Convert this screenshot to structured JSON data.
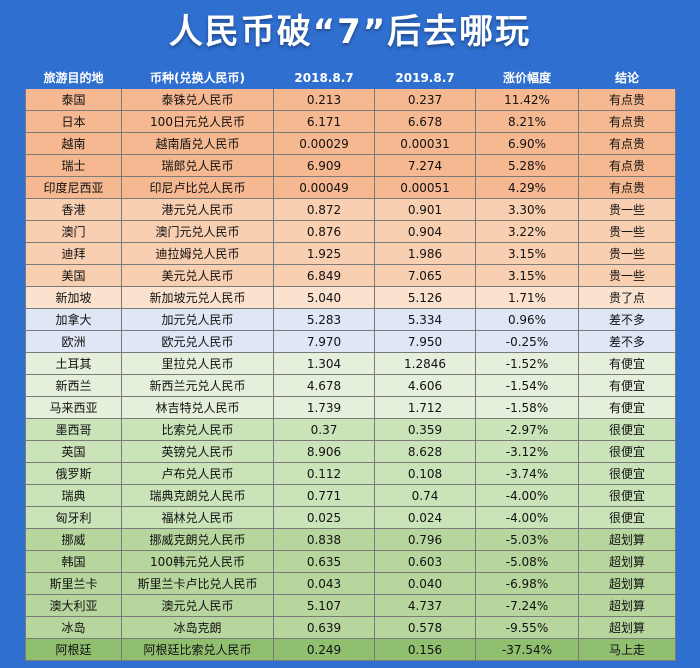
{
  "title": "人民币破“7”后去哪玩",
  "headers": [
    "旅游目的地",
    "币种(兑换人民币)",
    "2018.8.7",
    "2019.8.7",
    "涨价幅度",
    "结论"
  ],
  "rows": [
    {
      "dest": "泰国",
      "currency": "泰铢兑人民币",
      "v2018": "0.213",
      "v2019": "0.237",
      "change": "11.42%",
      "verdict": "有点贵",
      "group": "g-expensive"
    },
    {
      "dest": "日本",
      "currency": "100日元兑人民币",
      "v2018": "6.171",
      "v2019": "6.678",
      "change": "8.21%",
      "verdict": "有点贵",
      "group": "g-expensive"
    },
    {
      "dest": "越南",
      "currency": "越南盾兑人民币",
      "v2018": "0.00029",
      "v2019": "0.00031",
      "change": "6.90%",
      "verdict": "有点贵",
      "group": "g-expensive"
    },
    {
      "dest": "瑞士",
      "currency": "瑞郎兑人民币",
      "v2018": "6.909",
      "v2019": "7.274",
      "change": "5.28%",
      "verdict": "有点贵",
      "group": "g-expensive"
    },
    {
      "dest": "印度尼西亚",
      "currency": "印尼卢比兑人民币",
      "v2018": "0.00049",
      "v2019": "0.00051",
      "change": "4.29%",
      "verdict": "有点贵",
      "group": "g-expensive"
    },
    {
      "dest": "香港",
      "currency": "港元兑人民币",
      "v2018": "0.872",
      "v2019": "0.901",
      "change": "3.30%",
      "verdict": "贵一些",
      "group": "g-some"
    },
    {
      "dest": "澳门",
      "currency": "澳门元兑人民币",
      "v2018": "0.876",
      "v2019": "0.904",
      "change": "3.22%",
      "verdict": "贵一些",
      "group": "g-some"
    },
    {
      "dest": "迪拜",
      "currency": "迪拉姆兑人民币",
      "v2018": "1.925",
      "v2019": "1.986",
      "change": "3.15%",
      "verdict": "贵一些",
      "group": "g-some"
    },
    {
      "dest": "美国",
      "currency": "美元兑人民币",
      "v2018": "6.849",
      "v2019": "7.065",
      "change": "3.15%",
      "verdict": "贵一些",
      "group": "g-some"
    },
    {
      "dest": "新加坡",
      "currency": "新加坡元兑人民币",
      "v2018": "5.040",
      "v2019": "5.126",
      "change": "1.71%",
      "verdict": "贵了点",
      "group": "g-bit"
    },
    {
      "dest": "加拿大",
      "currency": "加元兑人民币",
      "v2018": "5.283",
      "v2019": "5.334",
      "change": "0.96%",
      "verdict": "差不多",
      "group": "g-same"
    },
    {
      "dest": "欧洲",
      "currency": "欧元兑人民币",
      "v2018": "7.970",
      "v2019": "7.950",
      "change": "-0.25%",
      "verdict": "差不多",
      "group": "g-same"
    },
    {
      "dest": "土耳其",
      "currency": "里拉兑人民币",
      "v2018": "1.304",
      "v2019": "1.2846",
      "change": "-1.52%",
      "verdict": "有便宜",
      "group": "g-cheap"
    },
    {
      "dest": "新西兰",
      "currency": "新西兰元兑人民币",
      "v2018": "4.678",
      "v2019": "4.606",
      "change": "-1.54%",
      "verdict": "有便宜",
      "group": "g-cheap"
    },
    {
      "dest": "马来西亚",
      "currency": "林吉特兑人民币",
      "v2018": "1.739",
      "v2019": "1.712",
      "change": "-1.58%",
      "verdict": "有便宜",
      "group": "g-cheap"
    },
    {
      "dest": "墨西哥",
      "currency": "比索兑人民币",
      "v2018": "0.37",
      "v2019": "0.359",
      "change": "-2.97%",
      "verdict": "很便宜",
      "group": "g-very"
    },
    {
      "dest": "英国",
      "currency": "英镑兑人民币",
      "v2018": "8.906",
      "v2019": "8.628",
      "change": "-3.12%",
      "verdict": "很便宜",
      "group": "g-very"
    },
    {
      "dest": "俄罗斯",
      "currency": "卢布兑人民币",
      "v2018": "0.112",
      "v2019": "0.108",
      "change": "-3.74%",
      "verdict": "很便宜",
      "group": "g-very"
    },
    {
      "dest": "瑞典",
      "currency": "瑞典克朗兑人民币",
      "v2018": "0.771",
      "v2019": "0.74",
      "change": "-4.00%",
      "verdict": "很便宜",
      "group": "g-very"
    },
    {
      "dest": "匈牙利",
      "currency": "福林兑人民币",
      "v2018": "0.025",
      "v2019": "0.024",
      "change": "-4.00%",
      "verdict": "很便宜",
      "group": "g-very"
    },
    {
      "dest": "挪威",
      "currency": "挪威克朗兑人民币",
      "v2018": "0.838",
      "v2019": "0.796",
      "change": "-5.03%",
      "verdict": "超划算",
      "group": "g-super"
    },
    {
      "dest": "韩国",
      "currency": "100韩元兑人民币",
      "v2018": "0.635",
      "v2019": "0.603",
      "change": "-5.08%",
      "verdict": "超划算",
      "group": "g-super"
    },
    {
      "dest": "斯里兰卡",
      "currency": "斯里兰卡卢比兑人民币",
      "v2018": "0.043",
      "v2019": "0.040",
      "change": "-6.98%",
      "verdict": "超划算",
      "group": "g-super"
    },
    {
      "dest": "澳大利亚",
      "currency": "澳元兑人民币",
      "v2018": "5.107",
      "v2019": "4.737",
      "change": "-7.24%",
      "verdict": "超划算",
      "group": "g-super"
    },
    {
      "dest": "冰岛",
      "currency": "冰岛克朗",
      "v2018": "0.639",
      "v2019": "0.578",
      "change": "-9.55%",
      "verdict": "超划算",
      "group": "g-super"
    },
    {
      "dest": "阿根廷",
      "currency": "阿根廷比索兑人民币",
      "v2018": "0.249",
      "v2019": "0.156",
      "change": "-37.54%",
      "verdict": "马上走",
      "group": "g-go"
    }
  ]
}
